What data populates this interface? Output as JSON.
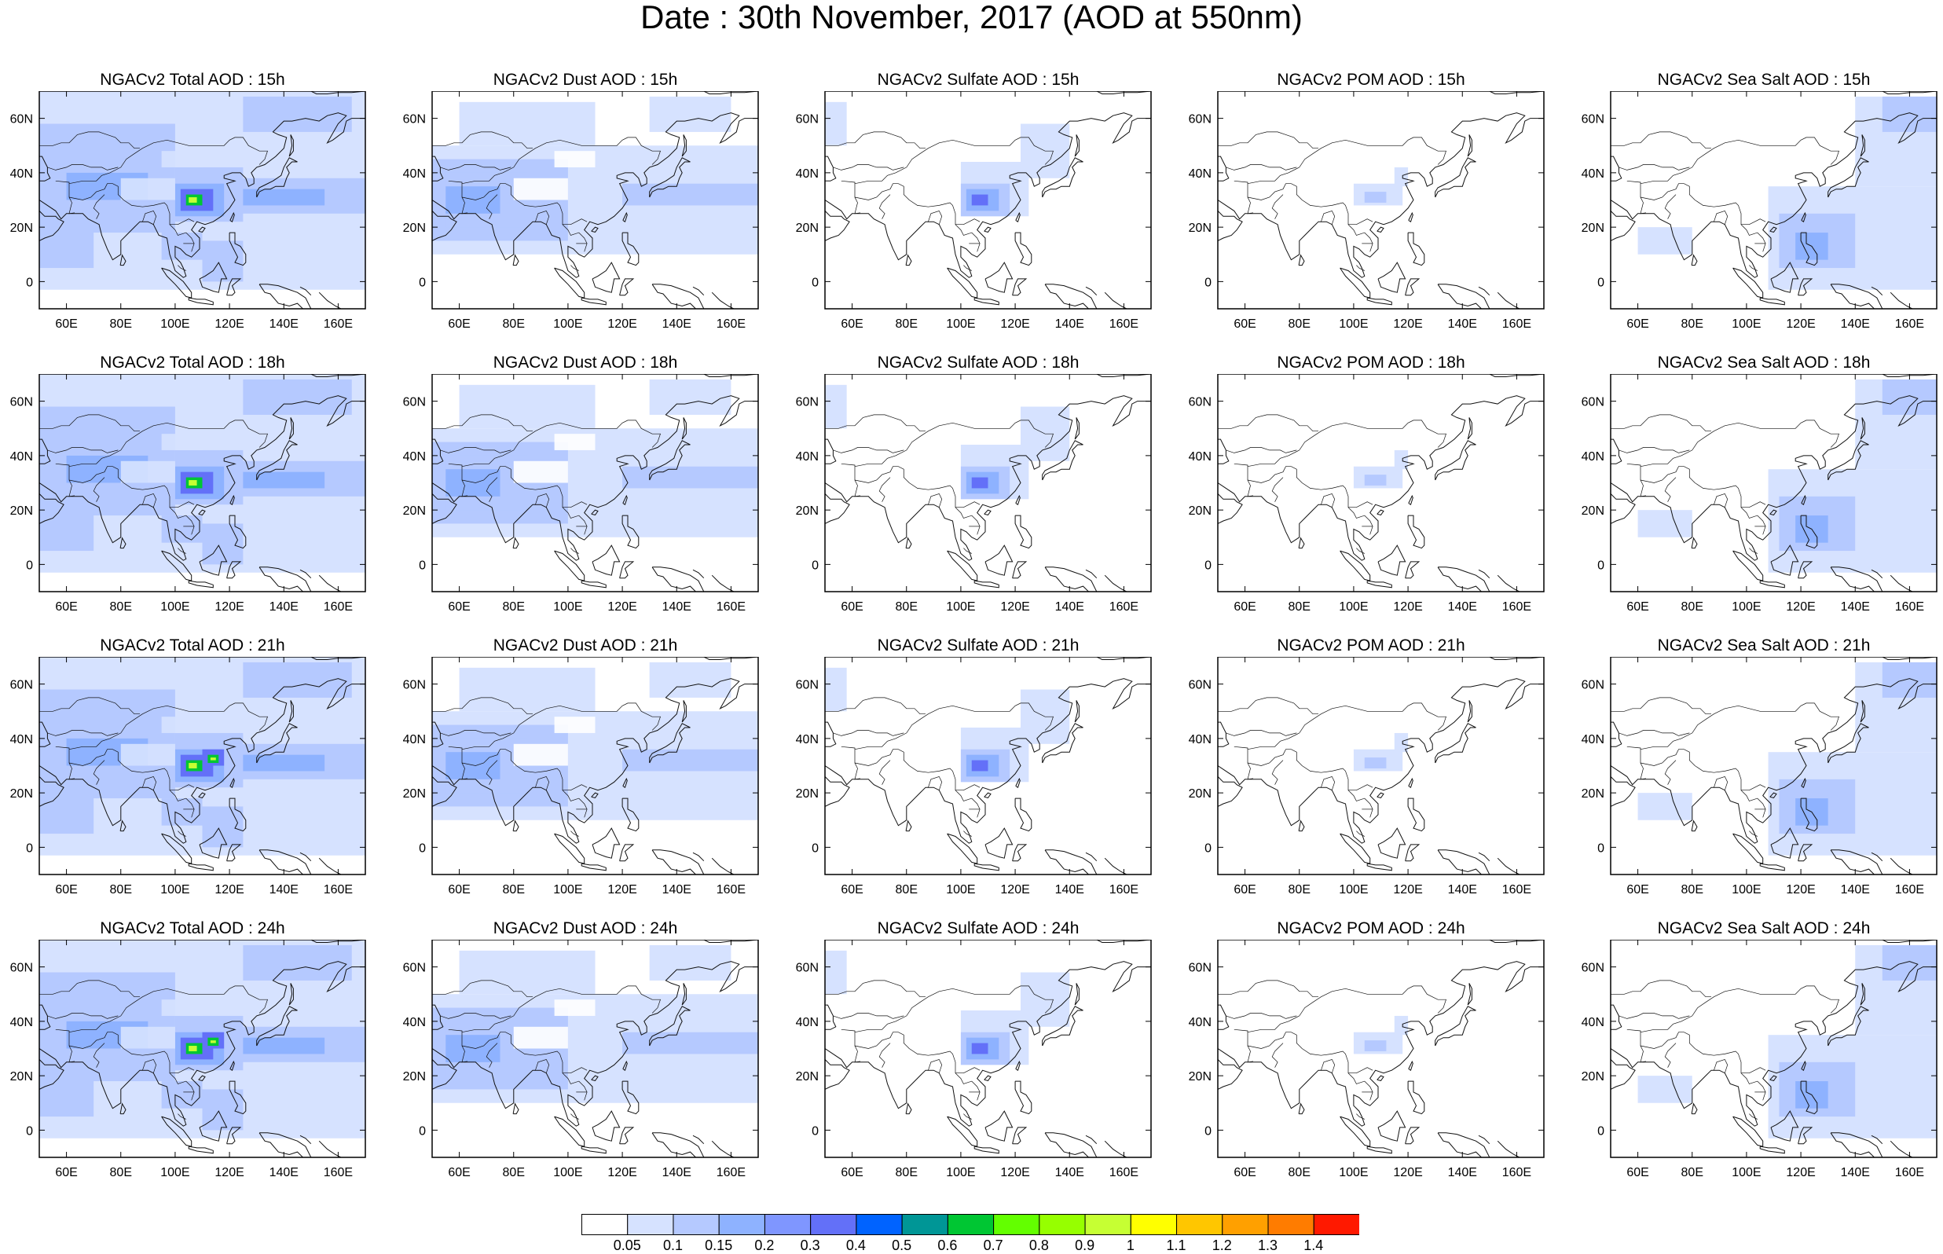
{
  "title": "Date : 30th November, 2017 (AOD at 550nm)",
  "map": {
    "lon_ticks": [
      "60E",
      "80E",
      "100E",
      "120E",
      "140E",
      "160E"
    ],
    "lat_ticks": [
      "60N",
      "40N",
      "20N",
      "0"
    ],
    "lon_range": [
      50,
      170
    ],
    "lat_range": [
      -10,
      70
    ],
    "lon_tick_values": [
      60,
      80,
      100,
      120,
      140,
      160
    ],
    "lat_tick_values": [
      60,
      40,
      20,
      0
    ]
  },
  "panels": [
    [
      "NGACv2 Total AOD : 15h",
      "NGACv2 Dust AOD : 15h",
      "NGACv2 Sulfate AOD : 15h",
      "NGACv2 POM AOD : 15h",
      "NGACv2 Sea Salt AOD : 15h"
    ],
    [
      "NGACv2 Total AOD : 18h",
      "NGACv2 Dust AOD : 18h",
      "NGACv2 Sulfate AOD : 18h",
      "NGACv2 POM AOD : 18h",
      "NGACv2 Sea Salt AOD : 18h"
    ],
    [
      "NGACv2 Total AOD : 21h",
      "NGACv2 Dust AOD : 21h",
      "NGACv2 Sulfate AOD : 21h",
      "NGACv2 POM AOD : 21h",
      "NGACv2 Sea Salt AOD : 21h"
    ],
    [
      "NGACv2 Total AOD : 24h",
      "NGACv2 Dust AOD : 24h",
      "NGACv2 Sulfate AOD : 24h",
      "NGACv2 POM AOD : 24h",
      "NGACv2 Sea Salt  AOD : 24h"
    ]
  ],
  "colorbar": {
    "labels": [
      "0.05",
      "0.1",
      "0.15",
      "0.2",
      "0.3",
      "0.4",
      "0.5",
      "0.6",
      "0.7",
      "0.8",
      "0.9",
      "1",
      "1.1",
      "1.2",
      "1.3",
      "1.4"
    ],
    "colors": [
      "#ffffff",
      "#d6e2ff",
      "#b5c9ff",
      "#8eb2ff",
      "#7f96ff",
      "#6370f8",
      "#0063ff",
      "#009696",
      "#00c633",
      "#63ff00",
      "#96ff00",
      "#c6ff33",
      "#ffff00",
      "#ffc600",
      "#ffa000",
      "#ff7c00",
      "#ff1900"
    ]
  },
  "colors": {
    "light": "#d6e2ff",
    "medium": "#b5c9ff",
    "strong": "#8eb2ff",
    "high": "#6370f8",
    "peak": "#00c633",
    "top": "#c6ff33"
  }
}
